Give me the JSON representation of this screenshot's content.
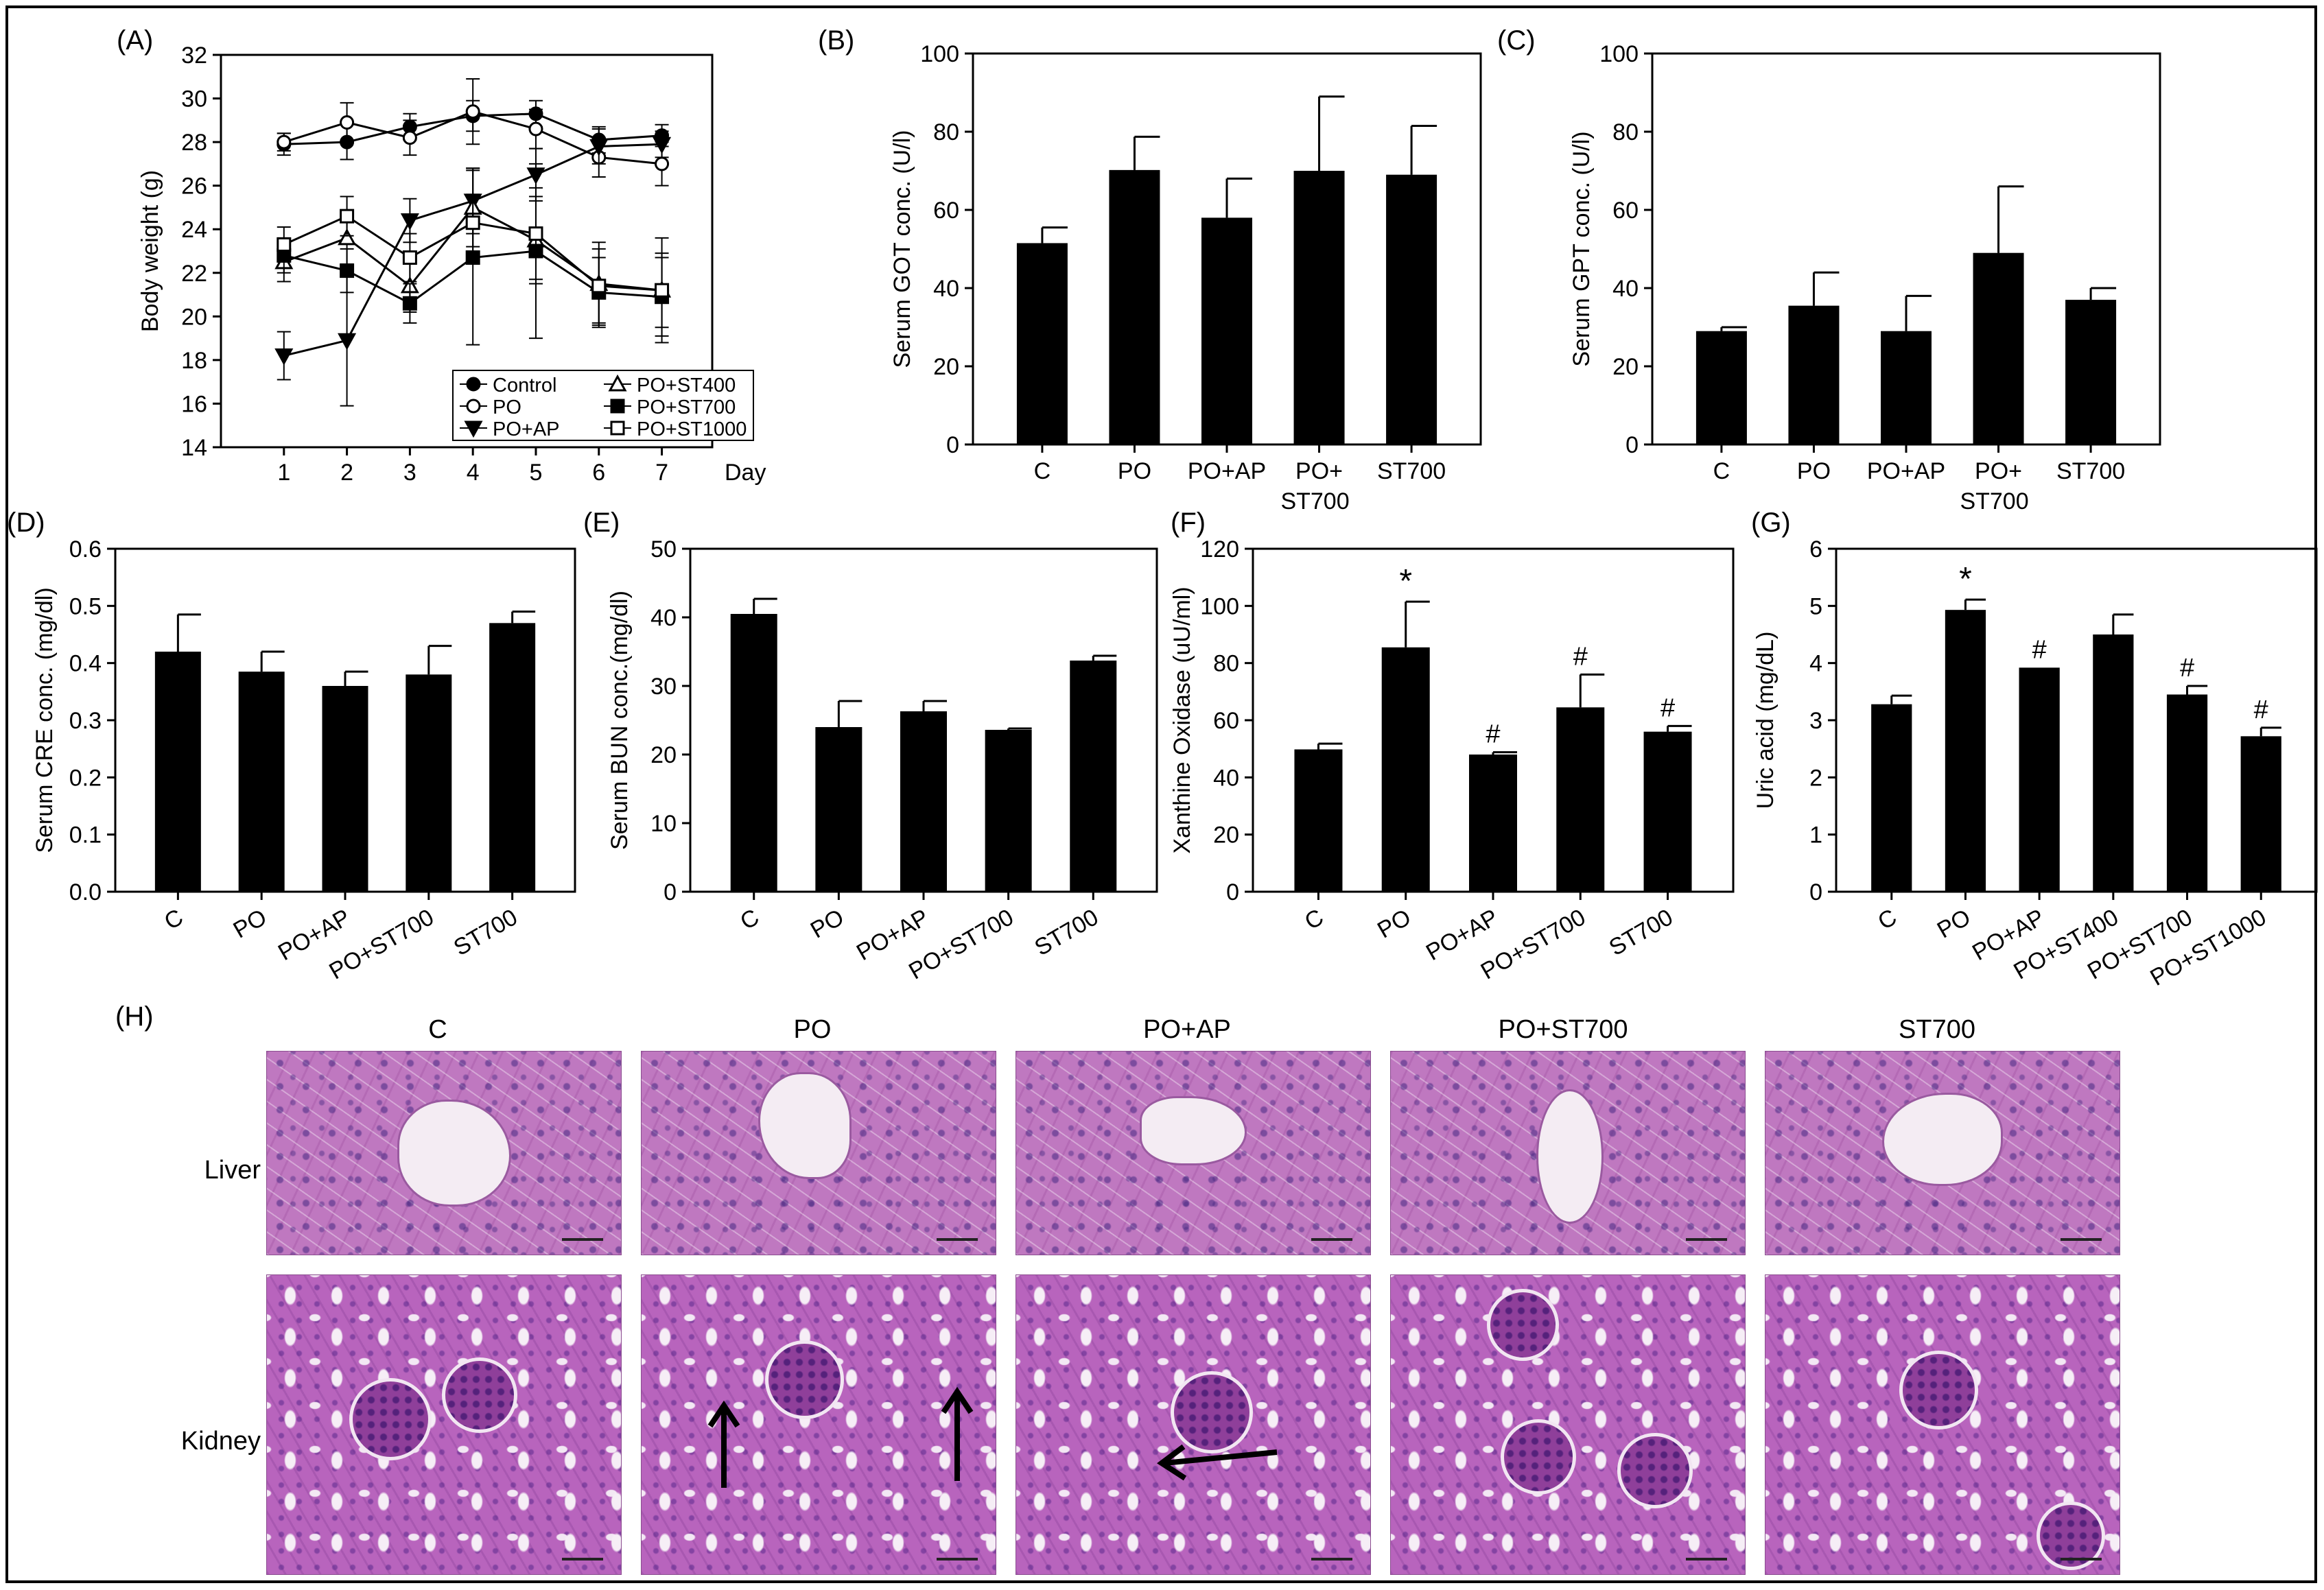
{
  "panel_labels": {
    "a": "(A)",
    "b": "(B)",
    "c": "(C)",
    "d": "(D)",
    "e": "(E)",
    "f": "(F)",
    "g": "(G)",
    "h": "(H)"
  },
  "chart_data": [
    {
      "id": "A",
      "type": "line",
      "x": [
        1,
        2,
        3,
        4,
        5,
        6,
        7
      ],
      "xlabel": "Day",
      "ylabel": "Body weight (g)",
      "ylim": [
        14,
        32
      ],
      "yticks": [
        14,
        16,
        18,
        20,
        22,
        24,
        26,
        28,
        30,
        32
      ],
      "legend": "bottom-right",
      "series": [
        {
          "name": "Control",
          "marker": "circle-filled",
          "values": [
            27.9,
            28.0,
            28.7,
            29.2,
            29.3,
            28.1,
            28.3
          ],
          "errors": [
            0.5,
            0.8,
            0.6,
            0.7,
            0.6,
            0.6,
            0.5
          ]
        },
        {
          "name": "PO",
          "marker": "circle-open",
          "values": [
            28.0,
            28.9,
            28.2,
            29.4,
            28.6,
            27.3,
            27.0
          ],
          "errors": [
            0.4,
            0.9,
            0.8,
            1.5,
            0.9,
            0.9,
            1.0
          ]
        },
        {
          "name": "PO+AP",
          "marker": "triangle-down-filled",
          "values": [
            18.2,
            18.9,
            24.4,
            25.3,
            26.5,
            27.8,
            27.9
          ],
          "errors": [
            1.1,
            3.0,
            1.0,
            1.5,
            1.2,
            0.8,
            0.6
          ]
        },
        {
          "name": "PO+ST400",
          "marker": "triangle-up-open",
          "values": [
            22.5,
            23.6,
            21.4,
            25.0,
            23.5,
            21.5,
            21.2
          ],
          "errors": [
            0.9,
            1.2,
            1.2,
            1.8,
            2.0,
            1.9,
            1.7
          ]
        },
        {
          "name": "PO+ST700",
          "marker": "square-filled",
          "values": [
            22.8,
            22.1,
            20.6,
            22.7,
            23.0,
            21.1,
            20.9
          ],
          "errors": [
            0.8,
            1.0,
            0.9,
            4.0,
            4.0,
            1.6,
            1.8
          ]
        },
        {
          "name": "PO+ST1000",
          "marker": "square-open",
          "values": [
            23.3,
            24.6,
            22.7,
            24.3,
            23.8,
            21.4,
            21.2
          ],
          "errors": [
            0.8,
            0.9,
            1.1,
            1.3,
            2.1,
            1.7,
            2.4
          ]
        }
      ]
    },
    {
      "id": "B",
      "type": "bar",
      "categories": [
        "C",
        "PO",
        "PO+AP",
        "PO+\nST700",
        "ST700"
      ],
      "values": [
        51.5,
        70.2,
        58.0,
        70.0,
        69.0
      ],
      "errors": [
        4.0,
        8.5,
        10.0,
        19.0,
        12.5
      ],
      "ylabel": "Serum GOT conc.  (U/l)",
      "ylim": [
        0,
        100
      ],
      "yticks": [
        0,
        20,
        40,
        60,
        80,
        100
      ],
      "tick_rotation": 0,
      "annotations": []
    },
    {
      "id": "C",
      "type": "bar",
      "categories": [
        "C",
        "PO",
        "PO+AP",
        "PO+\nST700",
        "ST700"
      ],
      "values": [
        29.0,
        35.5,
        29.0,
        49.0,
        37.0
      ],
      "errors": [
        1.0,
        8.5,
        9.0,
        17.0,
        3.0
      ],
      "ylabel": "Serum GPT conc.  (U/l)",
      "ylim": [
        0,
        100
      ],
      "yticks": [
        0,
        20,
        40,
        60,
        80,
        100
      ],
      "tick_rotation": 0,
      "annotations": []
    },
    {
      "id": "D",
      "type": "bar",
      "categories": [
        "C",
        "PO",
        "PO+AP",
        "PO+ST700",
        "ST700"
      ],
      "values": [
        0.42,
        0.385,
        0.36,
        0.38,
        0.47
      ],
      "errors": [
        0.065,
        0.035,
        0.025,
        0.05,
        0.02
      ],
      "ylabel": "Serum CRE conc. (mg/dl)",
      "ylim": [
        0,
        0.6
      ],
      "yticks": [
        "0.0",
        "0.1",
        "0.2",
        "0.3",
        "0.4",
        "0.5",
        "0.6"
      ],
      "tick_rotation": -30,
      "annotations": []
    },
    {
      "id": "E",
      "type": "bar",
      "categories": [
        "C",
        "PO",
        "PO+AP",
        "PO+ST700",
        "ST700"
      ],
      "values": [
        40.5,
        24.0,
        26.3,
        23.6,
        33.7
      ],
      "errors": [
        2.2,
        3.8,
        1.5,
        0.2,
        0.7
      ],
      "ylabel": "Serum BUN conc.(mg/dl)",
      "ylim": [
        0,
        50
      ],
      "yticks": [
        0,
        10,
        20,
        30,
        40,
        50
      ],
      "tick_rotation": -30,
      "annotations": []
    },
    {
      "id": "F",
      "type": "bar",
      "categories": [
        "C",
        "PO",
        "PO+AP",
        "PO+ST700",
        "ST700"
      ],
      "values": [
        49.8,
        85.5,
        48.0,
        64.5,
        56.0
      ],
      "errors": [
        2.0,
        16.0,
        0.8,
        11.5,
        2.0
      ],
      "ylabel": "Xanthine Oxidase (uU/ml)",
      "ylim": [
        0,
        120
      ],
      "yticks": [
        0,
        20,
        40,
        60,
        80,
        100,
        120
      ],
      "tick_rotation": -30,
      "annotations": [
        "",
        "*",
        "#",
        "#",
        "#"
      ]
    },
    {
      "id": "G",
      "type": "bar",
      "categories": [
        "C",
        "PO",
        "PO+AP",
        "PO+ST400",
        "PO+ST700",
        "PO+ST1000"
      ],
      "values": [
        3.28,
        4.93,
        3.92,
        4.5,
        3.45,
        2.72
      ],
      "errors": [
        0.15,
        0.18,
        0.0,
        0.35,
        0.15,
        0.15
      ],
      "ylabel": "Uric  acid (mg/dL)",
      "ylim": [
        0,
        6
      ],
      "yticks": [
        0,
        1,
        2,
        3,
        4,
        5,
        6
      ],
      "tick_rotation": -30,
      "annotations": [
        "",
        "*",
        "#",
        "",
        "#",
        "#"
      ]
    }
  ],
  "histology": {
    "columns": [
      "C",
      "PO",
      "PO+AP",
      "PO+ST700",
      "ST700"
    ],
    "rows": [
      "Liver",
      "Kidney"
    ]
  },
  "colors": {
    "bar": "#000000",
    "axis": "#000000",
    "tissue": "#bf78c0"
  }
}
